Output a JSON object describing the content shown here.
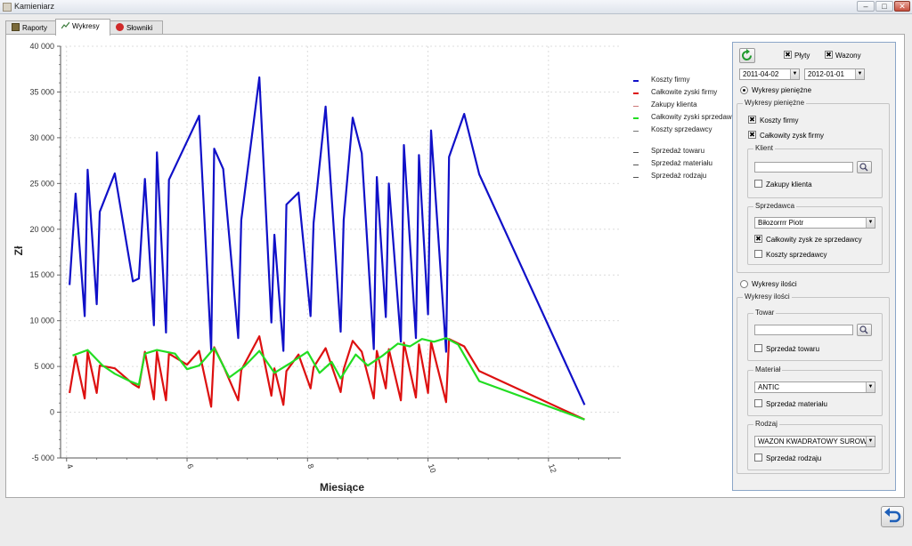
{
  "window": {
    "title": "Kamieniarz"
  },
  "window_buttons": {
    "minimize": "–",
    "maximize": "□",
    "close": "✕"
  },
  "tabs": [
    {
      "label": "Raporty",
      "icon": "report-icon"
    },
    {
      "label": "Wykresy",
      "icon": "chart-icon",
      "active": true
    },
    {
      "label": "Słowniki",
      "icon": "dictionary-icon"
    }
  ],
  "chart_data": {
    "type": "line",
    "xlabel": "Miesiące",
    "ylabel": "Zł",
    "xlim": [
      3.9,
      13.2
    ],
    "ylim": [
      -5000,
      40000
    ],
    "x_ticks": [
      "4",
      "6",
      "8",
      "10",
      "12"
    ],
    "y_ticks": [
      "-5 000",
      "0",
      "5 000",
      "10 000",
      "15 000",
      "20 000",
      "25 000",
      "30 000",
      "35 000",
      "40 000"
    ],
    "grid": true,
    "legend_position": "right",
    "series": [
      {
        "name": "Koszty firmy",
        "color": "#1010c8",
        "points": [
          [
            4.05,
            13900
          ],
          [
            4.15,
            23900
          ],
          [
            4.3,
            10500
          ],
          [
            4.35,
            26500
          ],
          [
            4.5,
            11800
          ],
          [
            4.55,
            21900
          ],
          [
            4.8,
            26100
          ],
          [
            5.1,
            14300
          ],
          [
            5.2,
            14600
          ],
          [
            5.3,
            25500
          ],
          [
            5.45,
            9500
          ],
          [
            5.5,
            28400
          ],
          [
            5.65,
            8700
          ],
          [
            5.7,
            25400
          ],
          [
            6.2,
            32400
          ],
          [
            6.4,
            6800
          ],
          [
            6.45,
            28800
          ],
          [
            6.6,
            26600
          ],
          [
            6.85,
            8100
          ],
          [
            6.9,
            21000
          ],
          [
            7.2,
            36600
          ],
          [
            7.4,
            9800
          ],
          [
            7.45,
            19400
          ],
          [
            7.6,
            6700
          ],
          [
            7.65,
            22700
          ],
          [
            7.85,
            24000
          ],
          [
            8.05,
            10500
          ],
          [
            8.1,
            20700
          ],
          [
            8.3,
            33400
          ],
          [
            8.55,
            8800
          ],
          [
            8.6,
            21000
          ],
          [
            8.75,
            32200
          ],
          [
            8.9,
            28300
          ],
          [
            9.1,
            6900
          ],
          [
            9.15,
            25700
          ],
          [
            9.3,
            10400
          ],
          [
            9.35,
            25000
          ],
          [
            9.55,
            7700
          ],
          [
            9.6,
            29200
          ],
          [
            9.8,
            8100
          ],
          [
            9.85,
            28100
          ],
          [
            10.0,
            10700
          ],
          [
            10.05,
            30800
          ],
          [
            10.3,
            6600
          ],
          [
            10.35,
            27900
          ],
          [
            10.6,
            32600
          ],
          [
            10.85,
            26000
          ],
          [
            12.6,
            800
          ]
        ]
      },
      {
        "name": "Całkowite zyski firmy",
        "color": "#dd1010",
        "points": [
          [
            4.05,
            2100
          ],
          [
            4.15,
            6100
          ],
          [
            4.3,
            1500
          ],
          [
            4.35,
            6600
          ],
          [
            4.5,
            2100
          ],
          [
            4.55,
            5100
          ],
          [
            4.8,
            4800
          ],
          [
            5.1,
            3100
          ],
          [
            5.2,
            2700
          ],
          [
            5.3,
            6600
          ],
          [
            5.45,
            1400
          ],
          [
            5.5,
            6600
          ],
          [
            5.65,
            1300
          ],
          [
            5.7,
            6400
          ],
          [
            6.0,
            5200
          ],
          [
            6.2,
            6700
          ],
          [
            6.4,
            600
          ],
          [
            6.45,
            7100
          ],
          [
            6.6,
            5100
          ],
          [
            6.85,
            1300
          ],
          [
            6.9,
            4600
          ],
          [
            7.2,
            8300
          ],
          [
            7.4,
            1800
          ],
          [
            7.45,
            4800
          ],
          [
            7.6,
            800
          ],
          [
            7.65,
            4500
          ],
          [
            7.85,
            6300
          ],
          [
            8.05,
            2600
          ],
          [
            8.1,
            4900
          ],
          [
            8.3,
            7000
          ],
          [
            8.55,
            2200
          ],
          [
            8.6,
            4700
          ],
          [
            8.75,
            7800
          ],
          [
            8.9,
            6600
          ],
          [
            9.1,
            1500
          ],
          [
            9.15,
            6700
          ],
          [
            9.3,
            2600
          ],
          [
            9.35,
            6900
          ],
          [
            9.55,
            1300
          ],
          [
            9.6,
            7600
          ],
          [
            9.8,
            1600
          ],
          [
            9.85,
            7400
          ],
          [
            10.0,
            2100
          ],
          [
            10.05,
            7700
          ],
          [
            10.3,
            1100
          ],
          [
            10.35,
            8000
          ],
          [
            10.6,
            7200
          ],
          [
            10.85,
            4500
          ],
          [
            12.6,
            -800
          ]
        ]
      },
      {
        "name": "Zakupy klienta",
        "color": "#cc7777",
        "points": []
      },
      {
        "name": "Całkowity zyski sprzedawcy",
        "color": "#22dd22",
        "points": [
          [
            4.1,
            6200
          ],
          [
            4.35,
            6800
          ],
          [
            4.6,
            5100
          ],
          [
            4.8,
            4200
          ],
          [
            5.05,
            3400
          ],
          [
            5.2,
            3000
          ],
          [
            5.3,
            6400
          ],
          [
            5.5,
            6800
          ],
          [
            5.8,
            6400
          ],
          [
            6.0,
            4700
          ],
          [
            6.2,
            5100
          ],
          [
            6.45,
            7000
          ],
          [
            6.7,
            3800
          ],
          [
            6.95,
            5000
          ],
          [
            7.2,
            6700
          ],
          [
            7.45,
            4300
          ],
          [
            7.7,
            5300
          ],
          [
            8.0,
            6600
          ],
          [
            8.2,
            4300
          ],
          [
            8.4,
            5500
          ],
          [
            8.55,
            3700
          ],
          [
            8.8,
            6300
          ],
          [
            9.0,
            5100
          ],
          [
            9.25,
            6200
          ],
          [
            9.5,
            7500
          ],
          [
            9.7,
            7200
          ],
          [
            9.9,
            8000
          ],
          [
            10.1,
            7700
          ],
          [
            10.3,
            8100
          ],
          [
            10.5,
            7400
          ],
          [
            10.85,
            3400
          ],
          [
            12.6,
            -800
          ]
        ]
      },
      {
        "name": "Koszty sprzedawcy",
        "color": "#777777",
        "points": []
      },
      {
        "name": "Sprzedaż towaru",
        "color": "#555555",
        "points": []
      },
      {
        "name": "Sprzedaż materiału",
        "color": "#555555",
        "points": []
      },
      {
        "name": "Sprzedaż rodzaju",
        "color": "#555555",
        "points": []
      }
    ]
  },
  "controls": {
    "plyty_label": "Płyty",
    "wazony_label": "Wazony",
    "date_from": "2011-04-02",
    "date_to": "2012-01-01",
    "radio_money_label": "Wykresy pieniężne",
    "group_money_title": "Wykresy pieniężne",
    "koszty_firmy_label": "Koszty firmy",
    "zysk_firmy_label": "Całkowity zysk firmy",
    "klient_title": "Klient",
    "klient_search_value": "",
    "zakupy_klienta_label": "Zakupy klienta",
    "sprzedawca_title": "Sprzedawca",
    "sprzedawca_value": "Biłozorrrr Piotr",
    "zysk_sprzedawcy_label": "Całkowity zysk ze sprzedawcy",
    "koszty_sprzedawcy_label": "Koszty sprzedawcy",
    "radio_qty_label": "Wykresy ilości",
    "group_qty_title": "Wykresy ilości",
    "towar_title": "Towar",
    "towar_search_value": "",
    "sprzedaz_towaru_label": "Sprzedaż towaru",
    "material_title": "Materiał",
    "material_value": "ANTIC",
    "sprzedaz_materialu_label": "Sprzedaż materiału",
    "rodzaj_title": "Rodzaj",
    "rodzaj_value": "WAZON KWADRATOWY SUROWY",
    "sprzedaz_rodzaju_label": "Sprzedaż rodzaju",
    "check_mark": "✖",
    "combo_arrow": "▼"
  }
}
